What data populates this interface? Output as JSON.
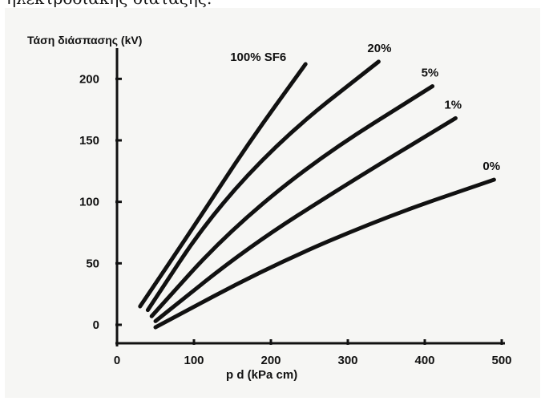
{
  "page": {
    "caption": "ηλεκτροδιακής διάταξης."
  },
  "chart_data": {
    "type": "line",
    "title": "",
    "ylabel": "Τάση διάσπασης (kV)",
    "xlabel": "p d  (kPa cm)",
    "xlim": [
      0,
      500
    ],
    "ylim": [
      -15,
      225
    ],
    "x_ticks": [
      0,
      100,
      200,
      300,
      400,
      500
    ],
    "y_ticks": [
      0,
      50,
      100,
      150,
      200
    ],
    "grid": false,
    "legend": "inline-labels",
    "series": [
      {
        "name": "100% SF6",
        "points": [
          [
            30,
            15
          ],
          [
            100,
            80
          ],
          [
            170,
            147
          ],
          [
            245,
            212
          ]
        ]
      },
      {
        "name": "20%",
        "points": [
          [
            40,
            12
          ],
          [
            120,
            88
          ],
          [
            220,
            155
          ],
          [
            340,
            214
          ]
        ]
      },
      {
        "name": "5%",
        "points": [
          [
            45,
            7
          ],
          [
            140,
            73
          ],
          [
            260,
            135
          ],
          [
            410,
            194
          ]
        ]
      },
      {
        "name": "1%",
        "points": [
          [
            50,
            3
          ],
          [
            170,
            63
          ],
          [
            300,
            115
          ],
          [
            440,
            168
          ]
        ]
      },
      {
        "name": "0%",
        "points": [
          [
            50,
            -2
          ],
          [
            200,
            48
          ],
          [
            350,
            88
          ],
          [
            490,
            118
          ]
        ]
      }
    ]
  }
}
